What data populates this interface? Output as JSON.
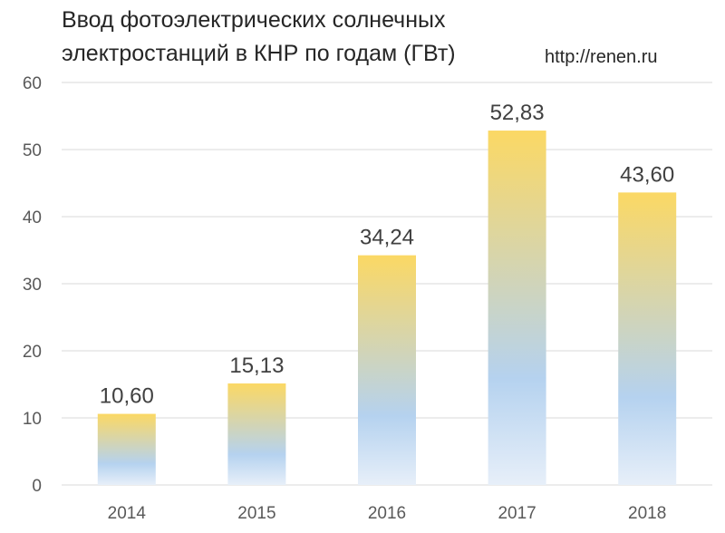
{
  "chart_data": {
    "type": "bar",
    "title_lines": [
      "Ввод фотоэлектрических солнечных",
      "электростанций в КНР по годам (ГВт)"
    ],
    "source_text": "http://renen.ru",
    "categories": [
      "2014",
      "2015",
      "2016",
      "2017",
      "2018"
    ],
    "values": [
      10.6,
      15.13,
      34.24,
      52.83,
      43.6
    ],
    "value_labels": [
      "10,60",
      "15,13",
      "34,24",
      "52,83",
      "43,60"
    ],
    "ylim": [
      0,
      60
    ],
    "yticks": [
      "0",
      "10",
      "20",
      "30",
      "40",
      "50",
      "60"
    ],
    "grid": true,
    "bar_gradient": [
      "#fbd864",
      "#b5d2ef",
      "#e7eff9"
    ],
    "grid_color": "#d9d9d9"
  }
}
